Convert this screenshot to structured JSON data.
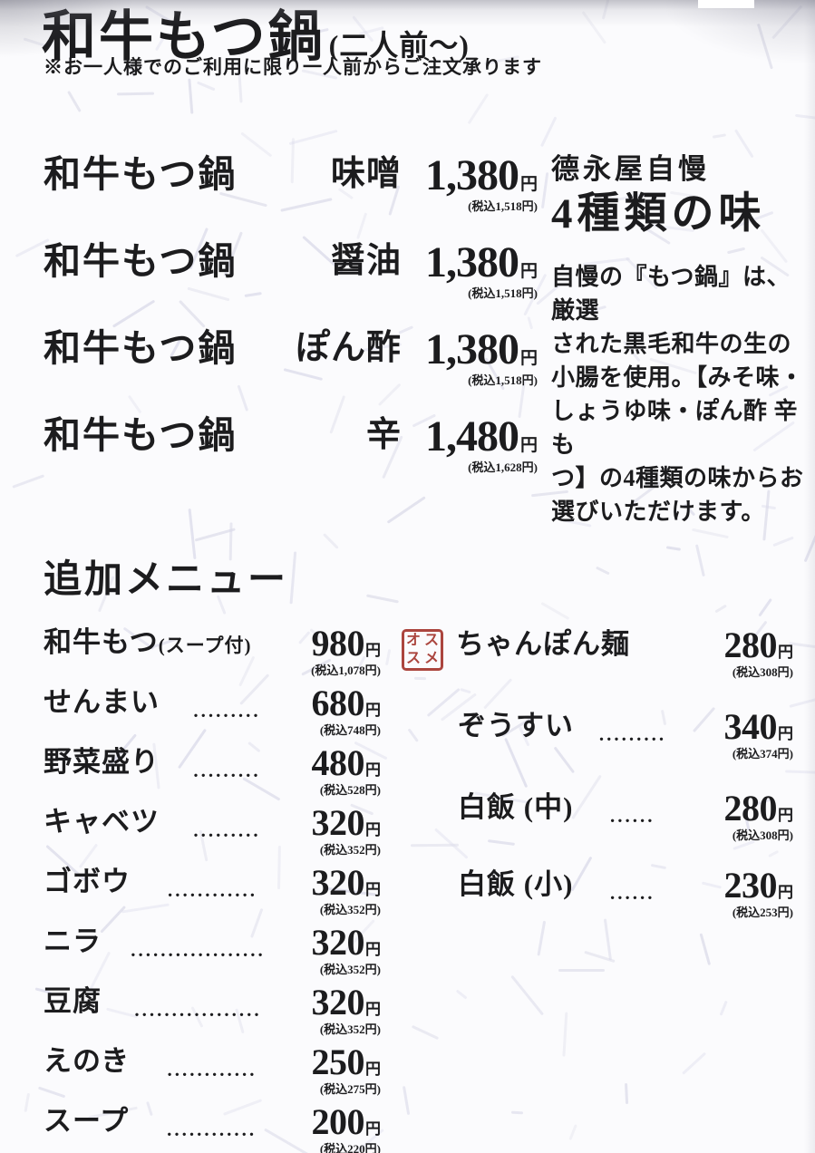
{
  "page": {
    "title": "和牛もつ鍋",
    "title_suffix": "(二人前〜)",
    "usage_note": "※お一人様でのご利用に限り一人前からご注文承ります"
  },
  "main_menu": {
    "items": [
      {
        "name": "和牛もつ鍋",
        "flavor": "味噌",
        "price": "1,380",
        "unit": "円",
        "tax": "(税込1,518円)"
      },
      {
        "name": "和牛もつ鍋",
        "flavor": "醤油",
        "price": "1,380",
        "unit": "円",
        "tax": "(税込1,518円)"
      },
      {
        "name": "和牛もつ鍋",
        "flavor": "ぽん酢",
        "price": "1,380",
        "unit": "円",
        "tax": "(税込1,518円)"
      },
      {
        "name": "和牛もつ鍋",
        "flavor": "辛",
        "price": "1,480",
        "unit": "円",
        "tax": "(税込1,628円)"
      }
    ]
  },
  "promo": {
    "heading_small": "德永屋自慢",
    "heading_large": "4種類の味",
    "description": "自慢の『もつ鍋』は、厳選\nされた黒毛和牛の生の\n小腸を使用。【みそ味・\nしょうゆ味・ぽん酢 辛も\nつ】の4種類の味からお\n選びいただけます。"
  },
  "additional_menu": {
    "heading": "追加メニュー",
    "left_items": [
      {
        "name": "和牛もつ",
        "name_suffix": "(スープ付)",
        "dots": "",
        "price": "980",
        "unit": "円",
        "tax": "(税込1,078円)"
      },
      {
        "name": "せんまい",
        "dots": ".........",
        "price": "680",
        "unit": "円",
        "tax": "(税込748円)"
      },
      {
        "name": "野菜盛り",
        "dots": ".........",
        "price": "480",
        "unit": "円",
        "tax": "(税込528円)"
      },
      {
        "name": "キャベツ",
        "dots": ".........",
        "price": "320",
        "unit": "円",
        "tax": "(税込352円)"
      },
      {
        "name": "ゴボウ",
        "dots": "............",
        "price": "320",
        "unit": "円",
        "tax": "(税込352円)"
      },
      {
        "name": "ニラ",
        "dots": "..................",
        "price": "320",
        "unit": "円",
        "tax": "(税込352円)"
      },
      {
        "name": "豆腐",
        "dots": ".................",
        "price": "320",
        "unit": "円",
        "tax": "(税込352円)"
      },
      {
        "name": "えのき",
        "dots": "............",
        "price": "250",
        "unit": "円",
        "tax": "(税込275円)"
      },
      {
        "name": "スープ",
        "dots": "............",
        "price": "200",
        "unit": "円",
        "tax": "(税込220円)"
      }
    ],
    "right_items": [
      {
        "name": "ちゃんぽん麺",
        "dots": "",
        "price": "280",
        "unit": "円",
        "tax": "(税込308円)"
      },
      {
        "name": "ぞうすい",
        "dots": ".........",
        "price": "340",
        "unit": "円",
        "tax": "(税込374円)"
      },
      {
        "name": "白飯 (中)",
        "dots": "......",
        "price": "280",
        "unit": "円",
        "tax": "(税込308円)"
      },
      {
        "name": "白飯 (小)",
        "dots": "......",
        "price": "230",
        "unit": "円",
        "tax": "(税込253円)"
      }
    ]
  },
  "stamp": {
    "label": "オススメ",
    "chars": [
      "オ",
      "ス",
      "ス",
      "メ"
    ],
    "color": "#a5362e"
  },
  "colors": {
    "text": "#1c1c1e",
    "paper": "#fbfbfd",
    "stamp_red": "#a5362e"
  }
}
